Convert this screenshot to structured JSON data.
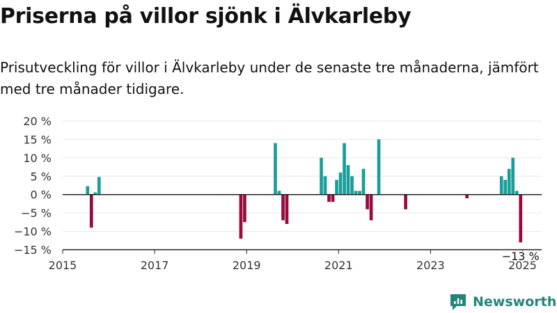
{
  "header": {
    "title": "Priserna på villor sjönk i Älvkarleby",
    "subtitle": "Prisutveckling för villor i Älvkarleby under de senaste tre månaderna, jämfört med tre månader tidigare."
  },
  "brand": {
    "name": "Newsworthy",
    "color": "#22847a"
  },
  "colors": {
    "positive": "#1a9e99",
    "negative": "#980a3e",
    "axis": "#222222",
    "grid": "#e6e6e6"
  },
  "chart_data": {
    "type": "bar",
    "title": "",
    "xlabel": "",
    "ylabel": "",
    "ylim": [
      -15,
      20
    ],
    "y_ticks": [
      20,
      15,
      10,
      5,
      0,
      -5,
      -10,
      -15
    ],
    "y_tick_labels": [
      "20 %",
      "15 %",
      "10 %",
      "5 %",
      "0 %",
      "−5 %",
      "−10 %",
      "−15 %"
    ],
    "x_range": [
      "2015-01",
      "2025-06"
    ],
    "x_tick_labels": [
      "2015",
      "2017",
      "2019",
      "2021",
      "2023",
      "2025"
    ],
    "grid": "horizontal",
    "annotation": {
      "label": "−13 %",
      "month": "2024-12"
    },
    "series": [
      {
        "months": [
          "2015-07",
          "2015-08",
          "2015-09",
          "2015-10",
          "2018-11",
          "2018-12",
          "2019-08",
          "2019-09",
          "2019-10",
          "2019-11",
          "2020-08",
          "2020-09",
          "2020-10",
          "2020-11",
          "2020-12",
          "2021-01",
          "2021-02",
          "2021-03",
          "2021-04",
          "2021-05",
          "2021-06",
          "2021-07",
          "2021-08",
          "2021-09",
          "2021-11",
          "2022-06",
          "2023-10",
          "2024-07",
          "2024-08",
          "2024-09",
          "2024-10",
          "2024-11",
          "2024-12"
        ],
        "values": [
          2.3,
          -9,
          0.6,
          4.8,
          -12,
          -7.5,
          14,
          1,
          -7,
          -8,
          10,
          5,
          -2,
          -2,
          4,
          6,
          14,
          8,
          5,
          1,
          1,
          7,
          -4,
          -7,
          15,
          -4,
          -1,
          5,
          4,
          7,
          10,
          1,
          -13
        ]
      }
    ]
  }
}
